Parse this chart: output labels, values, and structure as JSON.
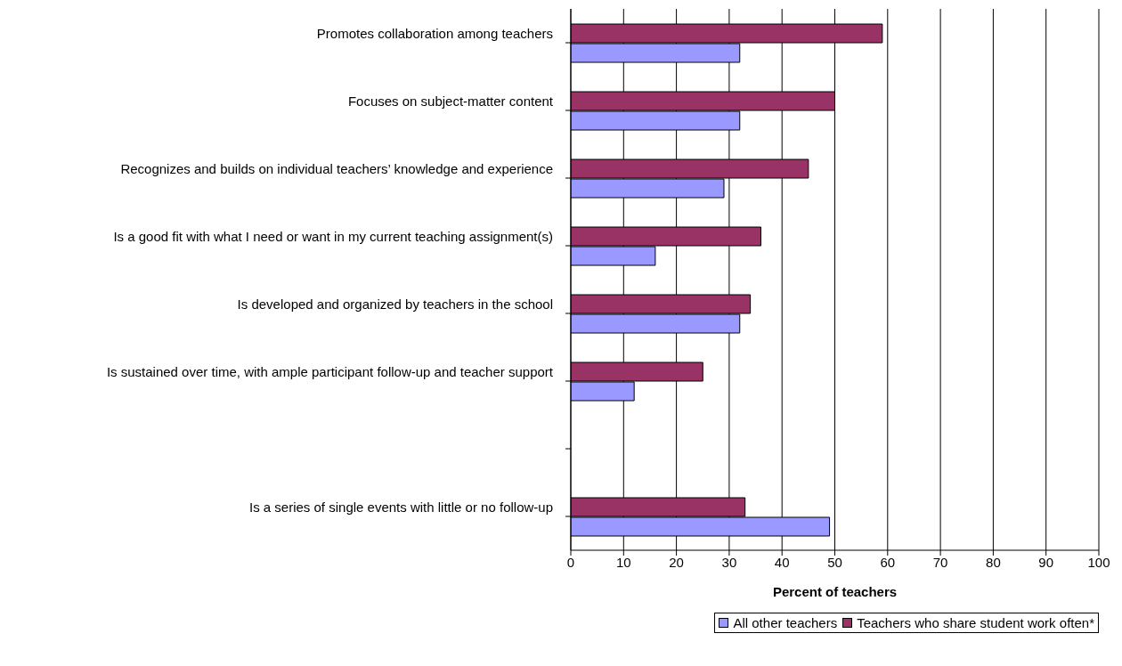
{
  "chart_data": {
    "type": "bar",
    "orientation": "horizontal",
    "xlabel": "Percent of teachers",
    "categories": [
      "Promotes collaboration among teachers",
      "Focuses on subject-matter content",
      "Recognizes and builds on individual teachers’ knowledge and experience",
      "Is a good fit with what I need or want in my current teaching assignment(s)",
      "Is developed and organized by teachers in the school",
      "Is sustained over time, with ample participant follow-up and teacher support",
      null,
      "Is a series of single events with little or no follow-up"
    ],
    "series": [
      {
        "name": "All other teachers",
        "color": "#9999ff",
        "values": [
          32,
          32,
          29,
          16,
          32,
          12,
          null,
          49
        ]
      },
      {
        "name": "Teachers who share student work often*",
        "color": "#993366",
        "values": [
          59,
          50,
          45,
          36,
          34,
          25,
          null,
          33
        ]
      }
    ],
    "xlim": [
      0,
      100
    ],
    "xticks": [
      0,
      10,
      20,
      30,
      40,
      50,
      60,
      70,
      80,
      90,
      100
    ],
    "grid": "x",
    "legend": "bottom right"
  }
}
